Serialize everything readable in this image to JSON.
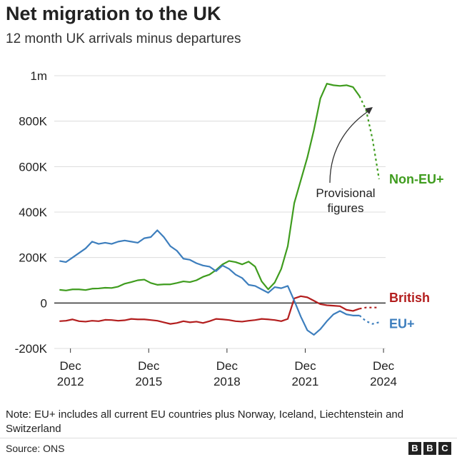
{
  "title": "Net migration to the UK",
  "subtitle": "12 month UK arrivals minus departures",
  "note": "Note: EU+ includes all current EU countries plus Norway, Iceland, Liechtenstein and Switzerland",
  "source": "Source: ONS",
  "logo": [
    "B",
    "B",
    "C"
  ],
  "annotation": "Provisional figures",
  "annotation_lines": [
    "Provisional",
    "figures"
  ],
  "chart_data": {
    "type": "line",
    "xlim": [
      2012.3,
      2025.0
    ],
    "ylim": [
      -200000,
      1000000
    ],
    "y_ticks": [
      {
        "value": 1000000,
        "label": "1m"
      },
      {
        "value": 800000,
        "label": "800K"
      },
      {
        "value": 600000,
        "label": "600K"
      },
      {
        "value": 400000,
        "label": "400K"
      },
      {
        "value": 200000,
        "label": "200K"
      },
      {
        "value": 0,
        "label": "0"
      },
      {
        "value": -200000,
        "label": "-200K"
      }
    ],
    "x_ticks": [
      {
        "value": 2012.92,
        "label": [
          "Dec",
          "2012"
        ]
      },
      {
        "value": 2015.92,
        "label": [
          "Dec",
          "2015"
        ]
      },
      {
        "value": 2018.92,
        "label": [
          "Dec",
          "2018"
        ]
      },
      {
        "value": 2021.92,
        "label": [
          "Dec",
          "2021"
        ]
      },
      {
        "value": 2024.92,
        "label": [
          "Dec",
          "2024"
        ]
      }
    ],
    "series": [
      {
        "name": "Non-EU+",
        "color": "#3f9c1e",
        "x": [
          2012.5,
          2012.75,
          2013.0,
          2013.25,
          2013.5,
          2013.75,
          2014.0,
          2014.25,
          2014.5,
          2014.75,
          2015.0,
          2015.25,
          2015.5,
          2015.75,
          2016.0,
          2016.25,
          2016.5,
          2016.75,
          2017.0,
          2017.25,
          2017.5,
          2017.75,
          2018.0,
          2018.25,
          2018.5,
          2018.75,
          2019.0,
          2019.25,
          2019.5,
          2019.75,
          2020.0,
          2020.25,
          2020.5,
          2020.75,
          2021.0,
          2021.25,
          2021.5,
          2021.75,
          2022.0,
          2022.25,
          2022.5,
          2022.75,
          2023.0,
          2023.25,
          2023.5,
          2023.75,
          2024.0
        ],
        "values": [
          58000,
          55000,
          60000,
          60000,
          57000,
          63000,
          64000,
          67000,
          66000,
          72000,
          85000,
          92000,
          100000,
          103000,
          88000,
          80000,
          82000,
          82000,
          88000,
          95000,
          92000,
          100000,
          115000,
          125000,
          145000,
          170000,
          185000,
          180000,
          170000,
          182000,
          160000,
          95000,
          60000,
          90000,
          150000,
          250000,
          440000,
          540000,
          640000,
          760000,
          900000,
          965000,
          958000,
          955000,
          958000,
          950000,
          910000
        ],
        "provisional": {
          "x": [
            2024.0,
            2024.25,
            2024.5,
            2024.75
          ],
          "values": [
            910000,
            850000,
            720000,
            545000
          ]
        }
      },
      {
        "name": "British",
        "color": "#b31e1e",
        "x": [
          2012.5,
          2012.75,
          2013.0,
          2013.25,
          2013.5,
          2013.75,
          2014.0,
          2014.25,
          2014.5,
          2014.75,
          2015.0,
          2015.25,
          2015.5,
          2015.75,
          2016.0,
          2016.25,
          2016.5,
          2016.75,
          2017.0,
          2017.25,
          2017.5,
          2017.75,
          2018.0,
          2018.25,
          2018.5,
          2018.75,
          2019.0,
          2019.25,
          2019.5,
          2019.75,
          2020.0,
          2020.25,
          2020.5,
          2020.75,
          2021.0,
          2021.25,
          2021.5,
          2021.75,
          2022.0,
          2022.25,
          2022.5,
          2022.75,
          2023.0,
          2023.25,
          2023.5,
          2023.75,
          2024.0
        ],
        "values": [
          -80000,
          -78000,
          -72000,
          -80000,
          -82000,
          -78000,
          -80000,
          -74000,
          -75000,
          -78000,
          -76000,
          -70000,
          -72000,
          -72000,
          -75000,
          -78000,
          -85000,
          -92000,
          -88000,
          -80000,
          -85000,
          -82000,
          -88000,
          -80000,
          -70000,
          -72000,
          -75000,
          -80000,
          -82000,
          -78000,
          -75000,
          -70000,
          -72000,
          -75000,
          -80000,
          -70000,
          20000,
          30000,
          25000,
          10000,
          -5000,
          -10000,
          -12000,
          -14000,
          -30000,
          -35000,
          -25000
        ],
        "provisional": {
          "x": [
            2024.0,
            2024.25,
            2024.5,
            2024.75
          ],
          "values": [
            -25000,
            -20000,
            -20000,
            -20000
          ]
        }
      },
      {
        "name": "EU+",
        "color": "#3d7ebd",
        "x": [
          2012.5,
          2012.75,
          2013.0,
          2013.25,
          2013.5,
          2013.75,
          2014.0,
          2014.25,
          2014.5,
          2014.75,
          2015.0,
          2015.25,
          2015.5,
          2015.75,
          2016.0,
          2016.25,
          2016.5,
          2016.75,
          2017.0,
          2017.25,
          2017.5,
          2017.75,
          2018.0,
          2018.25,
          2018.5,
          2018.75,
          2019.0,
          2019.25,
          2019.5,
          2019.75,
          2020.0,
          2020.25,
          2020.5,
          2020.75,
          2021.0,
          2021.25,
          2021.5,
          2021.75,
          2022.0,
          2022.25,
          2022.5,
          2022.75,
          2023.0,
          2023.25,
          2023.5,
          2023.75,
          2024.0
        ],
        "values": [
          185000,
          180000,
          200000,
          220000,
          240000,
          270000,
          260000,
          265000,
          260000,
          270000,
          275000,
          270000,
          265000,
          285000,
          290000,
          320000,
          290000,
          250000,
          230000,
          195000,
          190000,
          175000,
          165000,
          160000,
          140000,
          165000,
          150000,
          125000,
          110000,
          80000,
          75000,
          60000,
          45000,
          70000,
          65000,
          75000,
          10000,
          -60000,
          -120000,
          -140000,
          -115000,
          -80000,
          -50000,
          -35000,
          -50000,
          -55000,
          -55000
        ],
        "provisional": {
          "x": [
            2024.0,
            2024.25,
            2024.5,
            2024.75
          ],
          "values": [
            -55000,
            -80000,
            -92000,
            -85000
          ]
        }
      }
    ]
  }
}
